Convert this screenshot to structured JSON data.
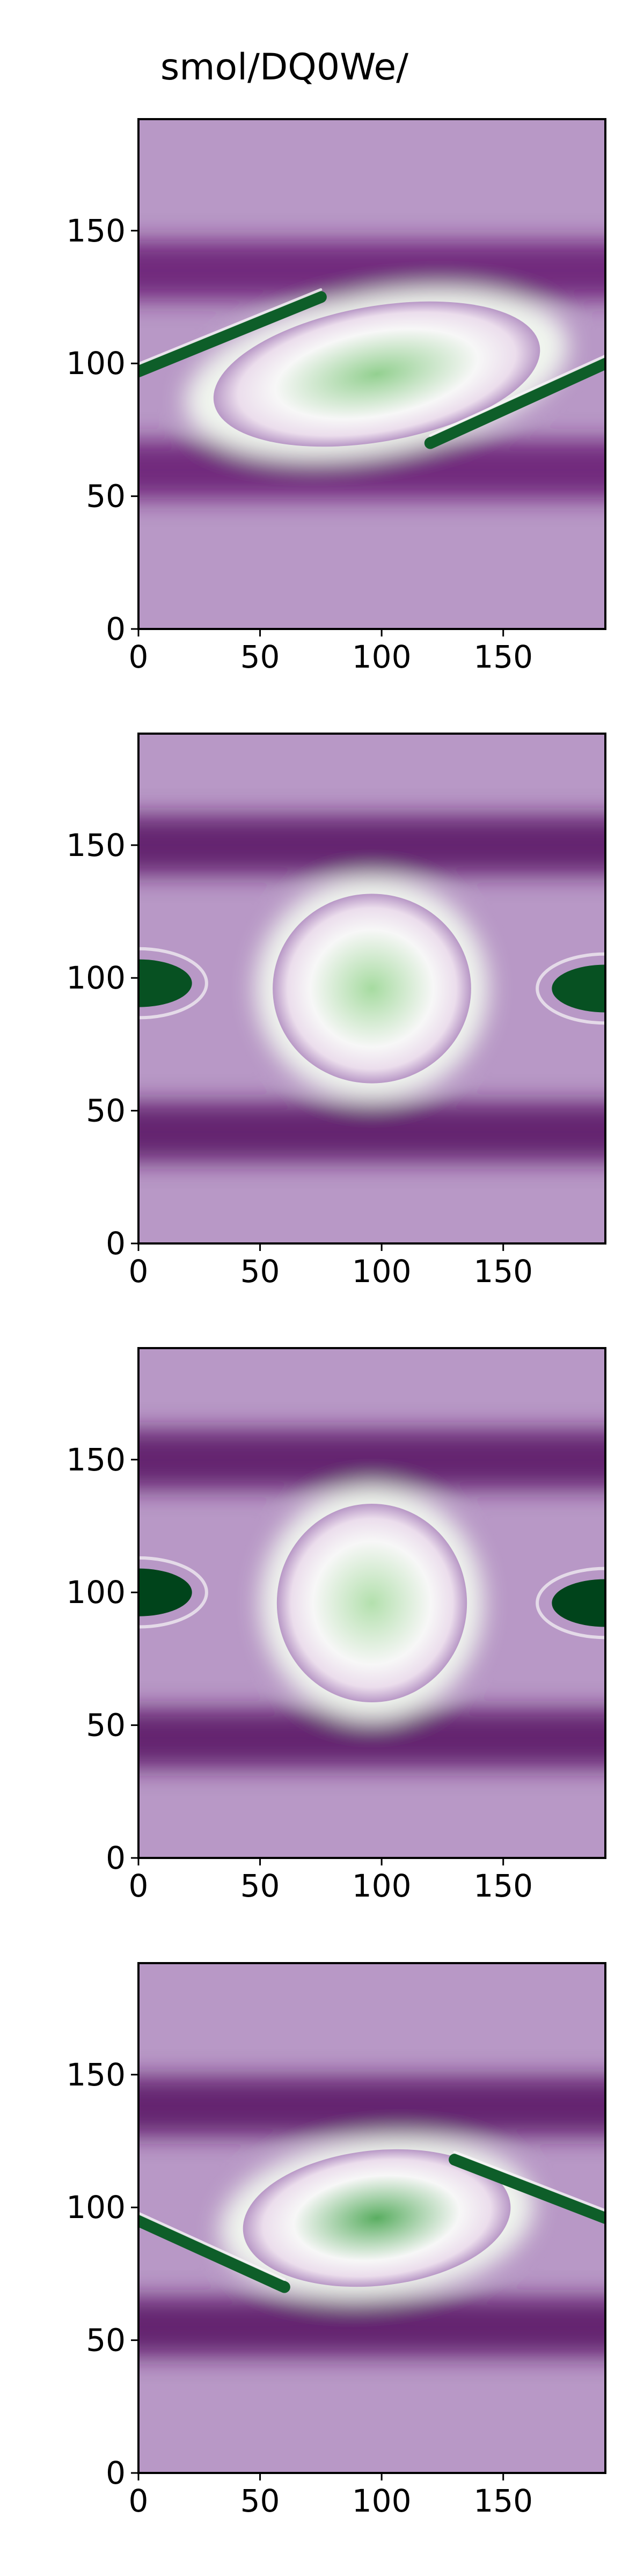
{
  "title": "smol/DQ0We/",
  "colors": {
    "colormap": "PRGn",
    "colormap_stops": [
      "#40004b",
      "#762a83",
      "#9970ab",
      "#c2a5cf",
      "#e7d4e8",
      "#f7f7f7",
      "#d9f0d3",
      "#a6dba0",
      "#5aae61",
      "#1b7837",
      "#00441b"
    ],
    "background": "#9f7ab6",
    "frame": "#000000"
  },
  "chart_data": [
    {
      "type": "heatmap",
      "title": "smol/DQ0We/",
      "xlabel": "",
      "ylabel": "",
      "xlim": [
        0,
        192
      ],
      "ylim": [
        0,
        192
      ],
      "xticks": [
        0,
        50,
        100,
        150
      ],
      "yticks": [
        0,
        50,
        100,
        150
      ],
      "colormap": "PRGn",
      "pattern": "tilted elliptical vortex with thin green filaments",
      "vortex": {
        "center_x": 98,
        "center_y": 96,
        "semi_axis_x": 80,
        "semi_axis_y": 30,
        "tilt_deg": 10,
        "core_value": 0.45
      },
      "filaments": [
        {
          "from": [
            0,
            97
          ],
          "to": [
            75,
            125
          ],
          "value": 0.9
        },
        {
          "from": [
            120,
            70
          ],
          "to": [
            192,
            100
          ],
          "value": 0.9
        }
      ],
      "dark_bands": [
        {
          "y": 135,
          "value": -0.85
        },
        {
          "y": 60,
          "value": -0.85
        }
      ],
      "background_value": -0.45
    },
    {
      "type": "heatmap",
      "title": "",
      "xlabel": "",
      "ylabel": "",
      "xlim": [
        0,
        192
      ],
      "ylim": [
        0,
        192
      ],
      "xticks": [
        0,
        50,
        100,
        150
      ],
      "yticks": [
        0,
        50,
        100,
        150
      ],
      "colormap": "PRGn",
      "pattern": "round vortex with green lobes at left and right edges",
      "vortex": {
        "center_x": 96,
        "center_y": 96,
        "semi_axis_x": 48,
        "semi_axis_y": 42,
        "tilt_deg": 0,
        "core_value": 0.4
      },
      "edge_lobes": [
        {
          "x": 0,
          "y": 98,
          "value": 0.95
        },
        {
          "x": 192,
          "y": 96,
          "value": 0.95
        }
      ],
      "dark_bands": [
        {
          "y": 150,
          "value": -0.9
        },
        {
          "y": 42,
          "value": -0.9
        }
      ],
      "background_value": -0.45
    },
    {
      "type": "heatmap",
      "title": "",
      "xlabel": "",
      "ylabel": "",
      "xlim": [
        0,
        192
      ],
      "ylim": [
        0,
        192
      ],
      "xticks": [
        0,
        50,
        100,
        150
      ],
      "yticks": [
        0,
        50,
        100,
        150
      ],
      "colormap": "PRGn",
      "pattern": "round vortex with dark green lobes at left and right edges",
      "vortex": {
        "center_x": 96,
        "center_y": 96,
        "semi_axis_x": 46,
        "semi_axis_y": 44,
        "tilt_deg": 0,
        "core_value": 0.35
      },
      "edge_lobes": [
        {
          "x": 0,
          "y": 100,
          "value": 1.0
        },
        {
          "x": 192,
          "y": 96,
          "value": 1.0
        }
      ],
      "dark_bands": [
        {
          "y": 150,
          "value": -0.9
        },
        {
          "y": 45,
          "value": -0.9
        }
      ],
      "background_value": -0.45
    },
    {
      "type": "heatmap",
      "title": "",
      "xlabel": "",
      "ylabel": "",
      "xlim": [
        0,
        192
      ],
      "ylim": [
        0,
        192
      ],
      "xticks": [
        0,
        50,
        100,
        150
      ],
      "yticks": [
        0,
        50,
        100,
        150
      ],
      "colormap": "PRGn",
      "pattern": "flattened vortex with green filaments crossing the edges",
      "vortex": {
        "center_x": 98,
        "center_y": 96,
        "semi_axis_x": 65,
        "semi_axis_y": 30,
        "tilt_deg": 6,
        "core_value": 0.6
      },
      "filaments": [
        {
          "from": [
            0,
            95
          ],
          "to": [
            60,
            70
          ],
          "value": 0.9
        },
        {
          "from": [
            130,
            118
          ],
          "to": [
            192,
            96
          ],
          "value": 0.9
        }
      ],
      "dark_bands": [
        {
          "y": 138,
          "value": -0.9
        },
        {
          "y": 55,
          "value": -0.9
        }
      ],
      "background_value": -0.45
    }
  ]
}
